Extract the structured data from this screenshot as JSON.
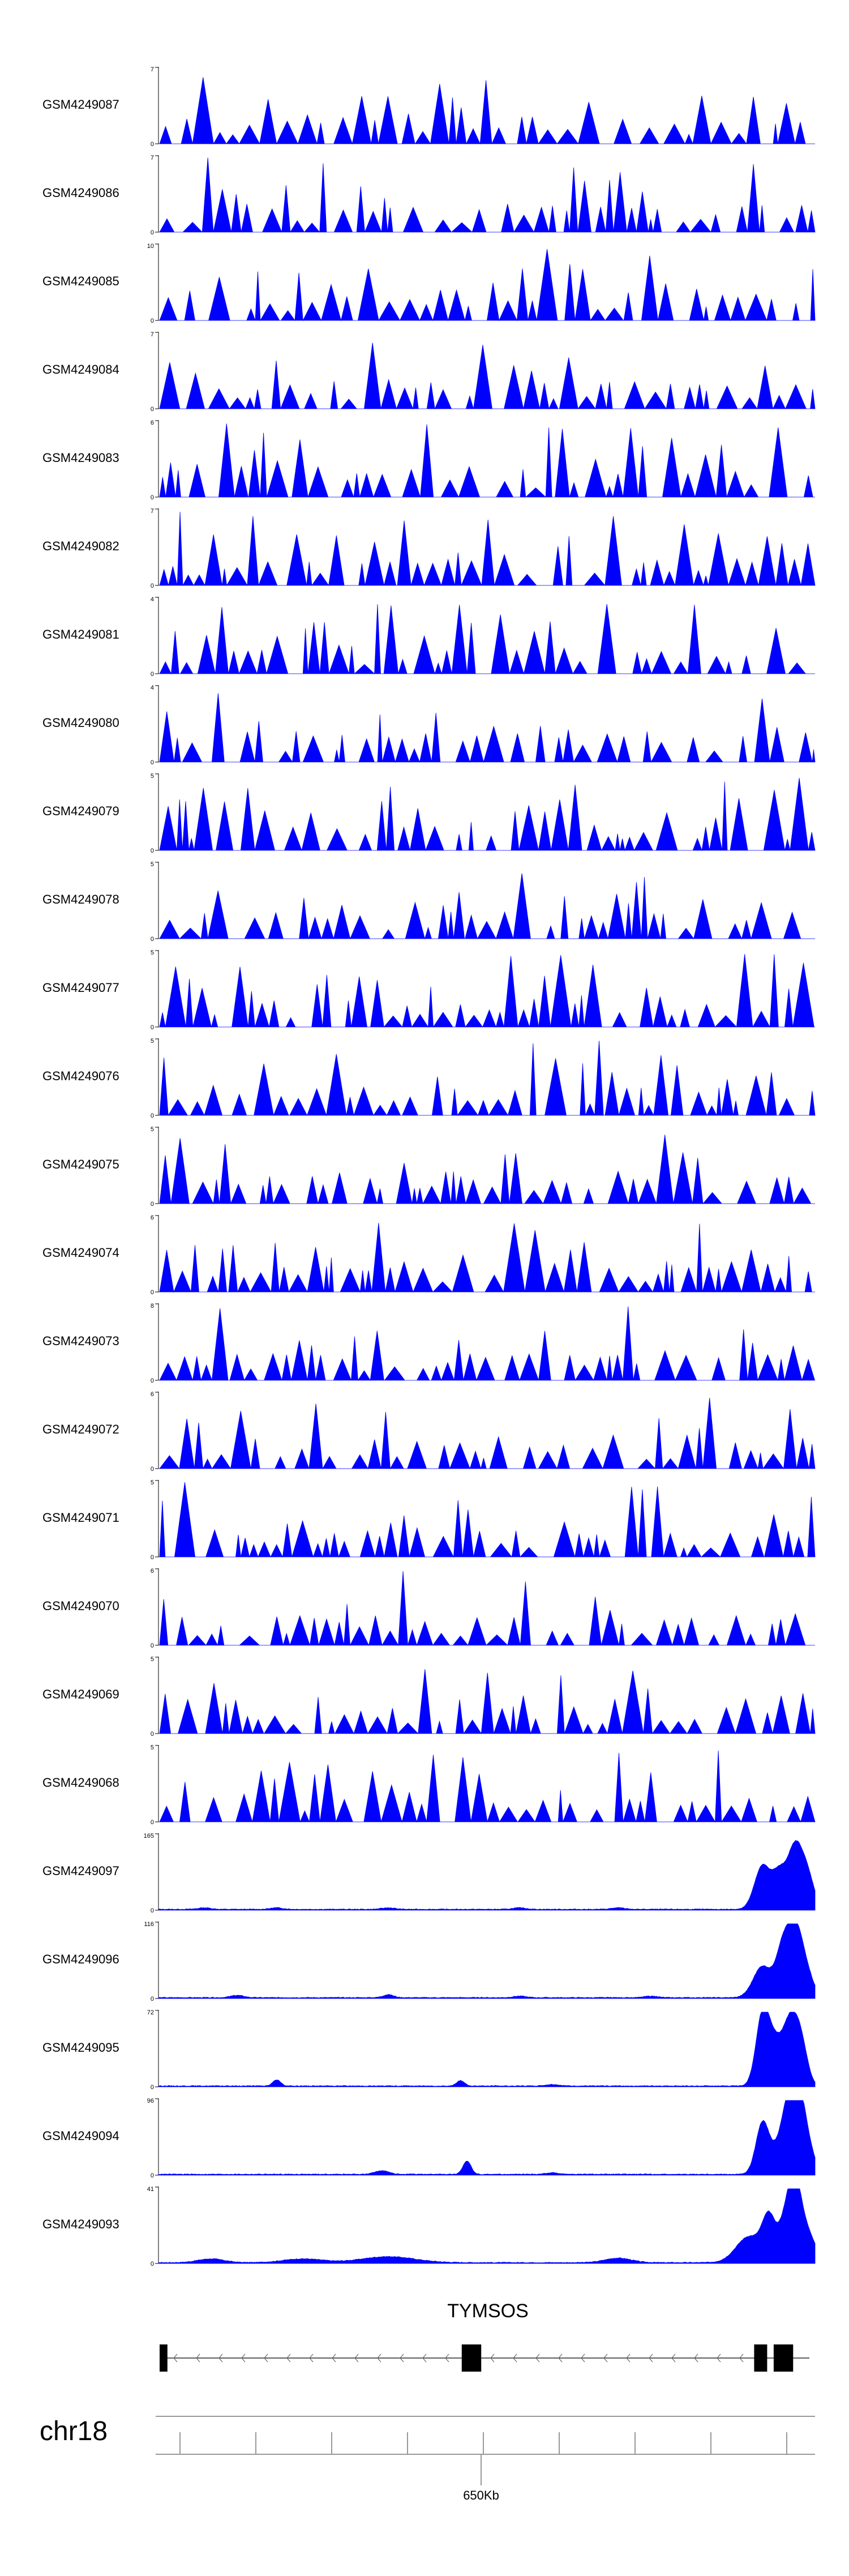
{
  "chart_data": {
    "type": "area",
    "color": "#0000ff",
    "sparse_tracks": [
      {
        "name": "GSM4249087",
        "ymax": "7",
        "ymin": "0",
        "seed": 87
      },
      {
        "name": "GSM4249086",
        "ymax": "7",
        "ymin": "0",
        "seed": 86
      },
      {
        "name": "GSM4249085",
        "ymax": "10",
        "ymin": "0",
        "seed": 85
      },
      {
        "name": "GSM4249084",
        "ymax": "7",
        "ymin": "0",
        "seed": 84
      },
      {
        "name": "GSM4249083",
        "ymax": "6",
        "ymin": "0",
        "seed": 83
      },
      {
        "name": "GSM4249082",
        "ymax": "7",
        "ymin": "0",
        "seed": 82
      },
      {
        "name": "GSM4249081",
        "ymax": "4",
        "ymin": "0",
        "seed": 81
      },
      {
        "name": "GSM4249080",
        "ymax": "4",
        "ymin": "0",
        "seed": 80
      },
      {
        "name": "GSM4249079",
        "ymax": "5",
        "ymin": "0",
        "seed": 79
      },
      {
        "name": "GSM4249078",
        "ymax": "5",
        "ymin": "0",
        "seed": 78
      },
      {
        "name": "GSM4249077",
        "ymax": "5",
        "ymin": "0",
        "seed": 77
      },
      {
        "name": "GSM4249076",
        "ymax": "5",
        "ymin": "0",
        "seed": 76
      },
      {
        "name": "GSM4249075",
        "ymax": "5",
        "ymin": "0",
        "seed": 75
      },
      {
        "name": "GSM4249074",
        "ymax": "6",
        "ymin": "0",
        "seed": 74
      },
      {
        "name": "GSM4249073",
        "ymax": "8",
        "ymin": "0",
        "seed": 73
      },
      {
        "name": "GSM4249072",
        "ymax": "6",
        "ymin": "0",
        "seed": 72
      },
      {
        "name": "GSM4249071",
        "ymax": "5",
        "ymin": "0",
        "seed": 71
      },
      {
        "name": "GSM4249070",
        "ymax": "6",
        "ymin": "0",
        "seed": 70
      },
      {
        "name": "GSM4249069",
        "ymax": "5",
        "ymin": "0",
        "seed": 69
      },
      {
        "name": "GSM4249068",
        "ymax": "5",
        "ymin": "0",
        "seed": 68
      }
    ],
    "signal_tracks": [
      {
        "name": "GSM4249097",
        "ymax": "165",
        "ymin": "0",
        "peaks": [
          [
            0.07,
            0.02,
            0.01
          ],
          [
            0.18,
            0.02,
            0.01
          ],
          [
            0.35,
            0.02,
            0.01
          ],
          [
            0.55,
            0.02,
            0.01
          ],
          [
            0.7,
            0.02,
            0.01
          ],
          [
            0.92,
            0.58,
            0.012
          ],
          [
            0.945,
            0.42,
            0.01
          ],
          [
            0.97,
            0.85,
            0.012
          ],
          [
            0.99,
            0.35,
            0.01
          ]
        ]
      },
      {
        "name": "GSM4249096",
        "ymax": "116",
        "ymin": "0",
        "peaks": [
          [
            0.12,
            0.03,
            0.01
          ],
          [
            0.35,
            0.04,
            0.008
          ],
          [
            0.55,
            0.02,
            0.01
          ],
          [
            0.75,
            0.02,
            0.01
          ],
          [
            0.92,
            0.42,
            0.014
          ],
          [
            0.95,
            0.55,
            0.01
          ],
          [
            0.97,
            0.95,
            0.012
          ],
          [
            0.99,
            0.2,
            0.01
          ]
        ]
      },
      {
        "name": "GSM4249095",
        "ymax": "72",
        "ymin": "0",
        "peaks": [
          [
            0.18,
            0.08,
            0.006
          ],
          [
            0.46,
            0.07,
            0.006
          ],
          [
            0.6,
            0.02,
            0.01
          ],
          [
            0.92,
            0.92,
            0.01
          ],
          [
            0.94,
            0.55,
            0.012
          ],
          [
            0.962,
            0.72,
            0.01
          ],
          [
            0.978,
            0.6,
            0.01
          ]
        ]
      },
      {
        "name": "GSM4249094",
        "ymax": "96",
        "ymin": "0",
        "peaks": [
          [
            0.34,
            0.05,
            0.01
          ],
          [
            0.47,
            0.18,
            0.006
          ],
          [
            0.6,
            0.02,
            0.01
          ],
          [
            0.92,
            0.68,
            0.01
          ],
          [
            0.945,
            0.3,
            0.012
          ],
          [
            0.96,
            0.75,
            0.01
          ],
          [
            0.975,
            0.92,
            0.01
          ],
          [
            0.99,
            0.3,
            0.01
          ]
        ]
      },
      {
        "name": "GSM4249093",
        "ymax": "41",
        "ymin": "0",
        "peaks": [
          [
            0.08,
            0.05,
            0.02
          ],
          [
            0.22,
            0.05,
            0.03
          ],
          [
            0.35,
            0.08,
            0.04
          ],
          [
            0.7,
            0.06,
            0.02
          ],
          [
            0.9,
            0.35,
            0.02
          ],
          [
            0.93,
            0.55,
            0.01
          ],
          [
            0.955,
            0.5,
            0.01
          ],
          [
            0.97,
            0.95,
            0.01
          ],
          [
            0.99,
            0.35,
            0.012
          ]
        ]
      }
    ],
    "gene": {
      "name": "TYMSOS",
      "strand": "-",
      "exons": [
        [
          0.0,
          0.012
        ],
        [
          0.465,
          0.495
        ],
        [
          0.915,
          0.935
        ],
        [
          0.945,
          0.975
        ]
      ]
    },
    "chromosome": "chr18",
    "position_label": "650Kb"
  }
}
